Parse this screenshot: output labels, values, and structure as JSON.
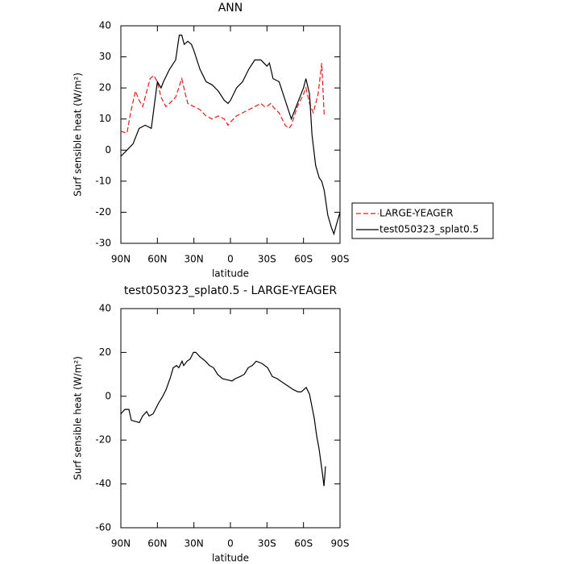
{
  "chart_data": [
    {
      "type": "line",
      "title": "ANN",
      "xlabel": "latitude",
      "ylabel": "Surf sensible heat (W/m²)",
      "xlim": [
        90,
        -90
      ],
      "ylim": [
        -30,
        40
      ],
      "xticks": [
        {
          "value": 90,
          "label": "90N"
        },
        {
          "value": 60,
          "label": "60N"
        },
        {
          "value": 30,
          "label": "30N"
        },
        0,
        {
          "value": -30,
          "label": "30S"
        },
        {
          "value": -60,
          "label": "60S"
        },
        {
          "value": -90,
          "label": "90S"
        }
      ],
      "yticks": [
        -30,
        -20,
        -10,
        0,
        10,
        20,
        30,
        40
      ],
      "legend": "right",
      "series": [
        {
          "name": "LARGE-YEAGER",
          "color": "#e41a1c",
          "style": "dashed",
          "x": [
            90,
            85,
            82,
            78,
            75,
            72,
            70,
            66,
            63,
            60,
            57,
            53,
            50,
            45,
            40,
            37,
            35,
            30,
            25,
            20,
            15,
            10,
            5,
            2,
            0,
            -5,
            -10,
            -15,
            -20,
            -25,
            -28,
            -30,
            -33,
            -37,
            -40,
            -45,
            -48,
            -50,
            -55,
            -60,
            -62,
            -65,
            -68,
            -72,
            -75,
            -77
          ],
          "values": [
            6,
            5.5,
            12,
            19,
            16,
            14,
            17,
            23,
            24,
            22,
            17,
            14,
            15,
            17,
            23,
            18,
            15,
            14,
            13,
            11,
            10,
            11,
            10,
            8,
            9,
            11,
            12,
            13,
            14,
            15,
            14,
            14,
            15,
            13,
            12,
            8,
            7,
            8,
            14,
            18,
            20,
            15,
            12,
            18,
            28,
            11
          ]
        },
        {
          "name": "test050323_splat0.5",
          "color": "#000000",
          "style": "solid",
          "x": [
            90,
            85,
            80,
            75,
            70,
            65,
            60,
            57,
            55,
            50,
            45,
            42,
            40,
            38,
            35,
            32,
            30,
            25,
            20,
            15,
            10,
            5,
            2,
            0,
            -5,
            -10,
            -15,
            -20,
            -25,
            -30,
            -32,
            -35,
            -40,
            -45,
            -50,
            -55,
            -60,
            -62,
            -65,
            -67,
            -70,
            -73,
            -75,
            -77,
            -80,
            -83,
            -85,
            -87,
            -90
          ],
          "values": [
            -2,
            0,
            2,
            7,
            8,
            7,
            22,
            20,
            22,
            26,
            29,
            37,
            37,
            34,
            35,
            34,
            32,
            26,
            22,
            21,
            19,
            16,
            15,
            16,
            20,
            22,
            26,
            29,
            29,
            27,
            28,
            23,
            22,
            16,
            10,
            15,
            20,
            23,
            18,
            5,
            -5,
            -9,
            -10,
            -13,
            -21,
            -25,
            -27,
            -24,
            -20
          ]
        }
      ]
    },
    {
      "type": "line",
      "title": "test050323_splat0.5 - LARGE-YEAGER",
      "xlabel": "latitude",
      "ylabel": "Surf sensible heat (W/m²)",
      "xlim": [
        90,
        -90
      ],
      "ylim": [
        -60,
        40
      ],
      "xticks": [
        {
          "value": 90,
          "label": "90N"
        },
        {
          "value": 60,
          "label": "60N"
        },
        {
          "value": 30,
          "label": "30N"
        },
        0,
        {
          "value": -30,
          "label": "30S"
        },
        {
          "value": -60,
          "label": "60S"
        },
        {
          "value": -90,
          "label": "90S"
        }
      ],
      "yticks": [
        -60,
        -40,
        -20,
        0,
        20,
        40
      ],
      "color": "#000000",
      "x": [
        90,
        86.7,
        83.4,
        81.4,
        74.8,
        72.1,
        68.8,
        66.8,
        63.5,
        58.9,
        55.6,
        52.9,
        49.6,
        47,
        44.3,
        42.4,
        39.7,
        38.4,
        35.7,
        33.1,
        30.4,
        28.4,
        25.1,
        20.5,
        17.2,
        13.9,
        10.6,
        6.6,
        2.6,
        -1.3,
        -4,
        -8,
        -11.3,
        -14.6,
        -17.9,
        -21.2,
        -25.8,
        -30.5,
        -34.4,
        -38.4,
        -43.7,
        -49,
        -51.6,
        -55.6,
        -58.2,
        -62.2,
        -64.9,
        -68.8,
        -70.8,
        -72.8,
        -75.5,
        -76.8,
        -78.1
      ],
      "values": [
        -8,
        -6,
        -6,
        -11,
        -12,
        -9,
        -7,
        -9,
        -8,
        -3,
        0,
        3,
        8,
        13,
        14,
        13,
        16,
        14,
        16,
        17,
        20,
        20,
        18,
        16,
        14,
        13,
        10,
        8,
        7.5,
        7,
        8,
        9,
        10,
        13,
        14,
        16,
        15,
        13,
        9,
        8,
        6,
        4,
        3,
        2,
        2,
        4,
        1,
        -10,
        -18,
        -24,
        -35,
        -41,
        -32
      ]
    }
  ]
}
